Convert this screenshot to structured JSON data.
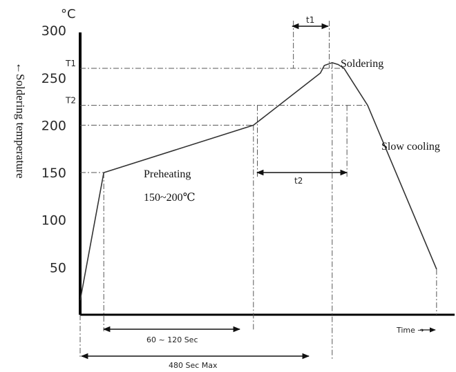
{
  "chart_data": {
    "type": "line",
    "unit": "°C",
    "ylabel": "←Soldering temperature",
    "xlabel": "Time →",
    "ylim": [
      0,
      300
    ],
    "yticks": [
      50,
      100,
      150,
      200,
      250,
      300
    ],
    "profile": [
      {
        "time": 0,
        "temp": 15
      },
      {
        "time": 12,
        "temp": 150
      },
      {
        "time": 88,
        "temp": 200
      },
      {
        "time": 122,
        "temp": 255
      },
      {
        "time": 124,
        "temp": 263
      },
      {
        "time": 128,
        "temp": 266
      },
      {
        "time": 131,
        "temp": 264
      },
      {
        "time": 134,
        "temp": 260
      },
      {
        "time": 146,
        "temp": 221
      },
      {
        "time": 181,
        "temp": 48
      }
    ],
    "levels": [
      {
        "label": "T1",
        "temp": 260
      },
      {
        "label": "T2",
        "temp": 221
      }
    ],
    "annotations": {
      "soldering": "Soldering",
      "slow_cooling": "Slow cooling",
      "preheating": "Preheating",
      "preheating_range": "150~200℃",
      "t1": "t1",
      "t2": "t2",
      "range_60_120": "60 ~ 120 Sec",
      "range_480": "480 Sec Max"
    }
  }
}
